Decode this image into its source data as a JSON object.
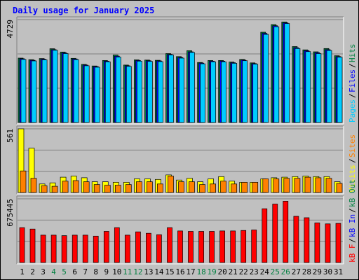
{
  "chart_data": {
    "type": "bar",
    "title": "Daily usage for January 2025",
    "categories": [
      "1",
      "2",
      "3",
      "4",
      "5",
      "6",
      "7",
      "8",
      "9",
      "10",
      "11",
      "12",
      "13",
      "14",
      "15",
      "16",
      "17",
      "18",
      "19",
      "20",
      "21",
      "22",
      "23",
      "24",
      "25",
      "26",
      "27",
      "28",
      "29",
      "30",
      "31"
    ],
    "weekend_days": [
      "4",
      "5",
      "11",
      "12",
      "18",
      "19",
      "25",
      "26"
    ],
    "panels": [
      {
        "id": "top",
        "max_label": "4729",
        "ylim": [
          0,
          4729
        ],
        "legend": [
          {
            "label": "Pages",
            "color": "#00ccff"
          },
          {
            "label": "Files",
            "color": "#0000ff"
          },
          {
            "label": "Hits",
            "color": "#008040"
          }
        ],
        "series": [
          {
            "name": "Hits",
            "color": "#008040",
            "values": [
              2960,
              2890,
              2940,
              3390,
              3240,
              2950,
              2670,
              2600,
              2850,
              3100,
              2640,
              2880,
              2870,
              2860,
              3170,
              3030,
              3300,
              2760,
              2850,
              2850,
              2780,
              2900,
              2740,
              4150,
              4500,
              4620,
              3490,
              3340,
              3250,
              3400,
              3070
            ]
          },
          {
            "name": "Files",
            "color": "#0000ff",
            "values": [
              2930,
              2860,
              2910,
              3350,
              3200,
              2920,
              2640,
              2570,
              2820,
              3050,
              2610,
              2850,
              2840,
              2830,
              3130,
              2990,
              3250,
              2730,
              2820,
              2820,
              2750,
              2870,
              2710,
              4100,
              4450,
              4580,
              3440,
              3300,
              3210,
              3350,
              3030
            ]
          },
          {
            "name": "Pages",
            "color": "#00ccff",
            "values": [
              2900,
              2830,
              2880,
              3320,
              3170,
              2890,
              2610,
              2540,
              2790,
              3010,
              2580,
              2820,
              2810,
              2800,
              3100,
              2960,
              3220,
              2700,
              2790,
              2790,
              2720,
              2840,
              2680,
              4050,
              4400,
              4550,
              3400,
              3260,
              3170,
              3310,
              3000
            ]
          }
        ]
      },
      {
        "id": "middle",
        "max_label": "561",
        "ylim": [
          0,
          561
        ],
        "legend": [
          {
            "label": "Visits",
            "color": "#ffff00"
          },
          {
            "label": "Sites",
            "color": "#ff8000"
          }
        ],
        "series": [
          {
            "name": "Visits",
            "color": "#ffff00",
            "values": [
              561,
              390,
              75,
              85,
              135,
              145,
              130,
              95,
              95,
              90,
              90,
              120,
              120,
              115,
              155,
              110,
              125,
              95,
              120,
              140,
              100,
              90,
              90,
              120,
              130,
              135,
              140,
              145,
              140,
              140,
              95
            ]
          },
          {
            "name": "Sites",
            "color": "#ff8000",
            "values": [
              190,
              125,
              60,
              55,
              100,
              105,
              95,
              70,
              65,
              65,
              70,
              95,
              95,
              75,
              145,
              95,
              95,
              70,
              75,
              100,
              75,
              90,
              90,
              120,
              120,
              125,
              125,
              135,
              130,
              125,
              80
            ]
          }
        ]
      },
      {
        "id": "bottom",
        "max_label": "675445",
        "ylim": [
          0,
          675445
        ],
        "legend": [
          {
            "label": "kB F",
            "color": "#ff0000"
          },
          {
            "label": "kB In",
            "color": "#0000ff"
          },
          {
            "label": "kB Out",
            "color": "#008040"
          }
        ],
        "series": [
          {
            "name": "kB F",
            "color": "#ff0000",
            "values": [
              370000,
              355000,
              290000,
              290000,
              285000,
              290000,
              290000,
              280000,
              330000,
              370000,
              290000,
              325000,
              310000,
              295000,
              370000,
              335000,
              330000,
              330000,
              330000,
              335000,
              335000,
              340000,
              345000,
              570000,
              620000,
              650000,
              490000,
              475000,
              420000,
              410000,
              415000
            ]
          }
        ]
      }
    ]
  }
}
